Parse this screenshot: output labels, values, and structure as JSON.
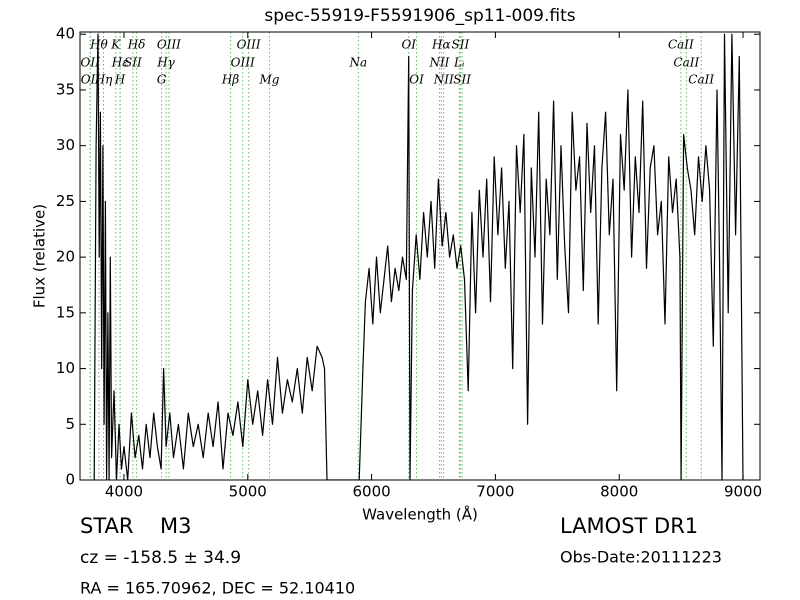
{
  "chart_data": {
    "type": "line",
    "title": "spec-55919-F5591906_sp11-009.fits",
    "x_label": "Wavelength (Å)",
    "y_label": "Flux (relative)",
    "color": "#000000",
    "xlim": [
      3645,
      9137
    ],
    "ylim": [
      0,
      40.2
    ],
    "xticks": [
      4000,
      5000,
      6000,
      7000,
      8000,
      9000
    ],
    "yticks": [
      0,
      5,
      10,
      15,
      20,
      25,
      30,
      35,
      40
    ],
    "x": [
      3760,
      3775,
      3790,
      3800,
      3810,
      3820,
      3830,
      3840,
      3850,
      3860,
      3870,
      3880,
      3890,
      3900,
      3920,
      3940,
      3960,
      3980,
      4000,
      4030,
      4060,
      4090,
      4120,
      4150,
      4180,
      4210,
      4240,
      4270,
      4300,
      4320,
      4340,
      4370,
      4400,
      4440,
      4480,
      4520,
      4560,
      4600,
      4640,
      4680,
      4720,
      4760,
      4800,
      4840,
      4880,
      4920,
      4960,
      5000,
      5040,
      5080,
      5120,
      5160,
      5200,
      5240,
      5280,
      5320,
      5360,
      5400,
      5440,
      5480,
      5520,
      5560,
      5600,
      5620,
      5640,
      5700,
      5800,
      5900,
      5930,
      5950,
      5980,
      6010,
      6040,
      6070,
      6100,
      6130,
      6160,
      6190,
      6220,
      6250,
      6280,
      6300,
      6310,
      6330,
      6360,
      6390,
      6420,
      6450,
      6480,
      6510,
      6540,
      6570,
      6600,
      6630,
      6660,
      6690,
      6720,
      6750,
      6780,
      6810,
      6840,
      6870,
      6900,
      6930,
      6960,
      6990,
      7020,
      7050,
      7080,
      7110,
      7140,
      7170,
      7200,
      7230,
      7260,
      7290,
      7320,
      7350,
      7380,
      7410,
      7440,
      7470,
      7500,
      7530,
      7560,
      7590,
      7620,
      7650,
      7680,
      7710,
      7740,
      7770,
      7800,
      7830,
      7860,
      7890,
      7920,
      7950,
      7980,
      8010,
      8040,
      8070,
      8100,
      8130,
      8160,
      8190,
      8220,
      8250,
      8280,
      8310,
      8340,
      8370,
      8400,
      8430,
      8460,
      8490,
      8500,
      8520,
      8550,
      8580,
      8610,
      8640,
      8670,
      8700,
      8730,
      8760,
      8790,
      8810,
      8830,
      8850,
      8880,
      8910,
      8940,
      8970,
      9000
    ],
    "values": [
      0,
      30,
      40,
      20,
      33,
      10,
      30,
      5,
      25,
      0,
      15,
      0,
      20,
      2,
      8,
      0,
      5,
      1,
      3,
      0,
      6,
      2,
      4,
      1,
      5,
      2,
      6,
      3,
      1,
      10,
      3,
      6,
      2,
      5,
      1,
      6,
      3,
      5,
      2,
      6,
      3,
      7,
      1,
      6,
      4,
      7,
      3,
      9,
      5,
      8,
      4,
      9,
      5,
      11,
      6,
      9,
      7,
      10,
      6,
      11,
      8,
      12,
      11,
      10,
      0,
      0,
      0,
      0,
      10,
      16,
      19,
      14,
      20,
      15,
      18,
      21,
      16,
      19,
      17,
      20,
      18,
      38,
      0,
      17,
      22,
      18,
      24,
      20,
      25,
      19,
      27,
      21,
      24,
      20,
      22,
      19,
      21,
      18,
      8,
      24,
      15,
      26,
      20,
      27,
      16,
      29,
      22,
      28,
      19,
      25,
      10,
      30,
      24,
      31,
      5,
      28,
      20,
      33,
      14,
      27,
      22,
      34,
      18,
      30,
      21,
      15,
      33,
      26,
      29,
      17,
      32,
      24,
      30,
      14,
      28,
      33,
      22,
      27,
      8,
      31,
      26,
      35,
      20,
      29,
      24,
      34,
      19,
      28,
      30,
      22,
      25,
      14,
      29,
      24,
      27,
      20,
      0,
      31,
      28,
      26,
      22,
      29,
      25,
      30,
      26,
      12,
      35,
      20,
      0,
      40,
      15,
      40,
      22,
      38,
      0
    ],
    "spectral_line_color": "#66bb66",
    "spectral_lines": [
      [
        {
          "label": "Hθ",
          "wavelength": 3798
        },
        {
          "label": "K",
          "wavelength": 3934
        },
        {
          "label": "Hδ",
          "wavelength": 4102
        },
        {
          "label": "OIII",
          "wavelength": 4363
        },
        {
          "label": "OIII",
          "wavelength": 5007
        },
        {
          "label": "OI",
          "wavelength": 6300
        },
        {
          "label": "Hα",
          "wavelength": 6563
        },
        {
          "label": "SII",
          "wavelength": 6717
        },
        {
          "label": "CaII",
          "wavelength": 8498
        }
      ],
      [
        {
          "label": "OII",
          "wavelength": 3727
        },
        {
          "label": "Hε",
          "wavelength": 3970
        },
        {
          "label": "SII",
          "wavelength": 4072
        },
        {
          "label": "Hγ",
          "wavelength": 4340
        },
        {
          "label": "OIII",
          "wavelength": 4959
        },
        {
          "label": "Na",
          "wavelength": 5893
        },
        {
          "label": "NII",
          "wavelength": 6548
        },
        {
          "label": "Lᵢ",
          "wavelength": 6708
        },
        {
          "label": "CaII",
          "wavelength": 8542
        }
      ],
      [
        {
          "label": "OII",
          "wavelength": 3729
        },
        {
          "label": "Hη",
          "wavelength": 3835
        },
        {
          "label": "H",
          "wavelength": 3968
        },
        {
          "label": "G",
          "wavelength": 4304
        },
        {
          "label": "Hβ",
          "wavelength": 4861
        },
        {
          "label": "Mg",
          "wavelength": 5175
        },
        {
          "label": "OI",
          "wavelength": 6363
        },
        {
          "label": "NII",
          "wavelength": 6583
        },
        {
          "label": "SII",
          "wavelength": 6731
        },
        {
          "label": "CaII",
          "wavelength": 8662
        }
      ]
    ],
    "info": {
      "object_class": "STAR",
      "subclass": "M3",
      "survey": "LAMOST DR1",
      "redshift": "cz = -158.5  ± 34.9",
      "obs_date": "Obs-Date:20111223",
      "coordinates": "RA = 165.70962, DEC = 52.10410"
    }
  }
}
